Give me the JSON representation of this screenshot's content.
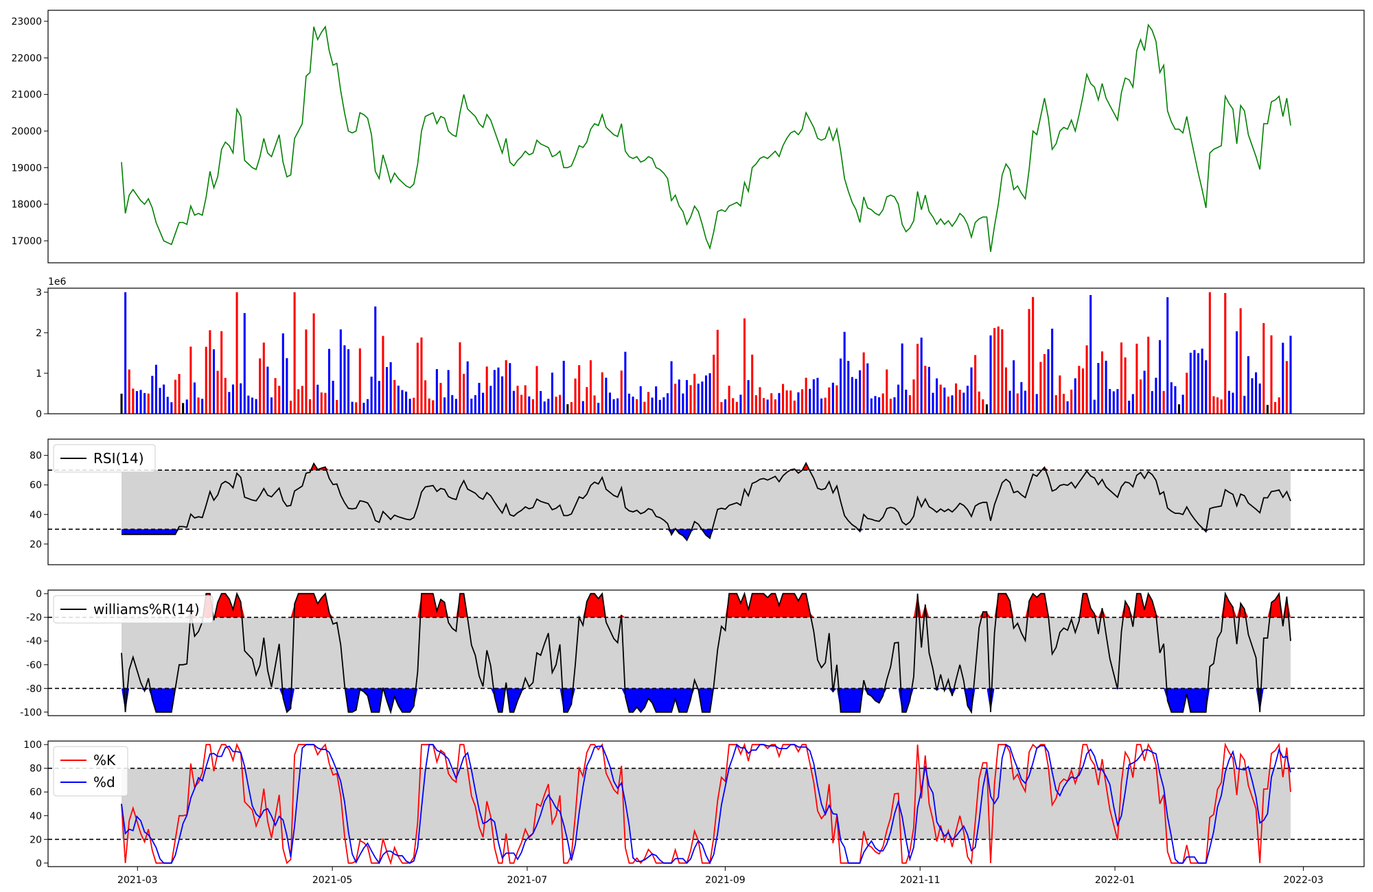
{
  "chart_data": {
    "x_axis": {
      "type": "date",
      "range": [
        "2021-02-01",
        "2022-03-20"
      ],
      "tick_labels": [
        "2021-03",
        "2021-05",
        "2021-07",
        "2021-09",
        "2021-11",
        "2022-01",
        "2022-03"
      ],
      "data_start": "2021-02-24",
      "data_end": "2022-02-25"
    },
    "panels": [
      {
        "id": "price",
        "type": "line",
        "ylim": [
          16400,
          23300
        ],
        "yticks": [
          "17000",
          "18000",
          "19000",
          "20000",
          "21000",
          "22000",
          "23000"
        ],
        "color": "#008000",
        "values": [
          19150,
          17750,
          18250,
          18400,
          18250,
          18100,
          18000,
          18150,
          17900,
          17500,
          17250,
          17000,
          16950,
          16900,
          17200,
          17500,
          17500,
          17450,
          17950,
          17700,
          17750,
          17700,
          18200,
          18900,
          18450,
          18750,
          19500,
          19700,
          19600,
          19400,
          20600,
          20400,
          19200,
          19100,
          19000,
          18950,
          19300,
          19800,
          19400,
          19300,
          19600,
          19900,
          19150,
          18750,
          18800,
          19800,
          20000,
          20200,
          21500,
          21600,
          22850,
          22500,
          22700,
          22850,
          22200,
          21800,
          21850,
          21100,
          20500,
          20000,
          19950,
          20000,
          20500,
          20450,
          20350,
          19900,
          18900,
          18700,
          19350,
          19000,
          18600,
          18850,
          18700,
          18600,
          18500,
          18450,
          18550,
          19100,
          20000,
          20400,
          20450,
          20500,
          20200,
          20400,
          20350,
          20000,
          19900,
          19850,
          20500,
          21000,
          20600,
          20500,
          20400,
          20200,
          20100,
          20450,
          20300,
          20000,
          19700,
          19400,
          19800,
          19150,
          19050,
          19200,
          19300,
          19450,
          19350,
          19400,
          19750,
          19650,
          19600,
          19550,
          19300,
          19350,
          19450,
          19000,
          19000,
          19050,
          19300,
          19600,
          19550,
          19700,
          20050,
          20200,
          20150,
          20450,
          20100,
          20000,
          19900,
          19850,
          20200,
          19450,
          19300,
          19250,
          19300,
          19150,
          19200,
          19300,
          19250,
          19000,
          18950,
          18850,
          18700,
          18100,
          18250,
          17950,
          17800,
          17450,
          17650,
          17950,
          17800,
          17450,
          17050,
          16800,
          17250,
          17800,
          17850,
          17800,
          17950,
          18000,
          18050,
          17950,
          18600,
          18350,
          19000,
          19100,
          19250,
          19300,
          19250,
          19350,
          19450,
          19300,
          19600,
          19800,
          19950,
          20000,
          19900,
          20050,
          20500,
          20300,
          20100,
          19800,
          19750,
          19800,
          20100,
          19750,
          20050,
          19450,
          18700,
          18350,
          18050,
          17850,
          17500,
          18200,
          17900,
          17850,
          17750,
          17700,
          17850,
          18200,
          18250,
          18200,
          18000,
          17450,
          17250,
          17350,
          17550,
          18350,
          17850,
          18250,
          17800,
          17650,
          17450,
          17600,
          17450,
          17550,
          17400,
          17550,
          17750,
          17650,
          17450,
          17100,
          17500,
          17600,
          17650,
          17650,
          16700,
          17400,
          18000,
          18800,
          19100,
          18950,
          18400,
          18500,
          18300,
          18150,
          18950,
          20000,
          19900,
          20400,
          20900,
          20350,
          19500,
          19650,
          20000,
          20100,
          20050,
          20300,
          20000,
          20450,
          20950,
          21550,
          21300,
          21200,
          20850,
          21300,
          20900,
          20700,
          20500,
          20300,
          21050,
          21450,
          21400,
          21200,
          22200,
          22500,
          22200,
          22900,
          22750,
          22450,
          21600,
          21800,
          20550,
          20250,
          20050,
          20050,
          19950,
          20400,
          19850,
          19350,
          18850,
          18400,
          17900,
          19400,
          19500,
          19550,
          19600,
          20950,
          20750,
          20600,
          19650,
          20700,
          20550,
          19900,
          19600,
          19300,
          18950,
          20200,
          20200,
          20800,
          20850,
          20950,
          20400,
          20900,
          20150
        ]
      },
      {
        "id": "volume",
        "type": "bar",
        "ylim": [
          0,
          3100000
        ],
        "yticks": [
          "0",
          "1",
          "2",
          "3"
        ],
        "scale_label": "1e6",
        "colors": {
          "up": "#ff0000",
          "down": "#0000ff",
          "flat": "#000000"
        }
      },
      {
        "id": "rsi",
        "type": "line",
        "ylim": [
          6,
          91
        ],
        "yticks": [
          "20",
          "40",
          "60",
          "80"
        ],
        "levels": [
          30,
          70
        ],
        "legend": [
          "RSI(14)"
        ],
        "colors": {
          "line": "#000000",
          "band": "#d3d3d3",
          "over": "#ff0000",
          "under": "#0000ff"
        }
      },
      {
        "id": "williams",
        "type": "line",
        "ylim": [
          -103,
          3
        ],
        "yticks": [
          "0",
          "-20",
          "-40",
          "-60",
          "-80",
          "-100"
        ],
        "levels": [
          -20,
          -80
        ],
        "legend": [
          "williams%R(14)"
        ],
        "colors": {
          "line": "#000000",
          "band": "#d3d3d3",
          "over": "#ff0000",
          "under": "#0000ff"
        }
      },
      {
        "id": "stochastic",
        "type": "line",
        "ylim": [
          -3,
          103
        ],
        "yticks": [
          "0",
          "20",
          "40",
          "60",
          "80",
          "100"
        ],
        "levels": [
          20,
          80
        ],
        "legend": [
          "%K",
          "%d"
        ],
        "colors": {
          "k": "#ff0000",
          "d": "#0000ff",
          "band": "#d3d3d3"
        }
      }
    ]
  }
}
